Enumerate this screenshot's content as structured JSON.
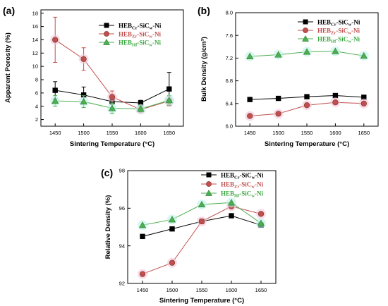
{
  "chart_data": [
    {
      "panel": "(a)",
      "type": "line",
      "xlabel": "Sintering Temperature (°C)",
      "ylabel": "Apparent Porosity (%)",
      "x": [
        1450,
        1500,
        1550,
        1600,
        1650
      ],
      "xlim": [
        1425,
        1675
      ],
      "ylim": [
        1,
        18.5
      ],
      "yticks": [
        2,
        4,
        6,
        8,
        10,
        12,
        14,
        16,
        18
      ],
      "legend_position": "top-right",
      "series": [
        {
          "name": "HEB_Cr-SiC_w-Ni",
          "color": "#000000",
          "marker": "square",
          "values": [
            6.4,
            5.7,
            4.7,
            4.5,
            6.6
          ],
          "errors": [
            1.3,
            1.2,
            0.4,
            0.4,
            2.5
          ]
        },
        {
          "name": "HEB_Zr-SiC_w-Ni",
          "color": "#c0504d",
          "marker": "circle",
          "values": [
            14.0,
            11.1,
            5.4,
            3.5,
            4.8
          ],
          "errors": [
            3.4,
            1.7,
            0.9,
            0.4,
            0.7
          ]
        },
        {
          "name": "HEB_Hf-SiC_w-Ni",
          "color": "#4caf50",
          "marker": "triangle",
          "values": [
            4.8,
            4.7,
            3.7,
            3.6,
            4.9
          ],
          "errors": [
            0.8,
            0.9,
            0.8,
            0.4,
            0.7
          ]
        }
      ]
    },
    {
      "panel": "(b)",
      "type": "line",
      "xlabel": "Sintering Temperature (°C)",
      "ylabel": "Bulk Density (g/cm³)",
      "x": [
        1450,
        1500,
        1550,
        1600,
        1650
      ],
      "xlim": [
        1425,
        1675
      ],
      "ylim": [
        6.0,
        8.0
      ],
      "yticks": [
        "6.0",
        "6.4",
        "6.8",
        "7.2",
        "7.6",
        "8.0"
      ],
      "legend_position": "top-right",
      "series": [
        {
          "name": "HEB_Cr-SiC_w-Ni",
          "color": "#000000",
          "marker": "square",
          "values": [
            6.47,
            6.49,
            6.52,
            6.54,
            6.51
          ]
        },
        {
          "name": "HEB_Zr-SiC_w-Ni",
          "color": "#c0504d",
          "marker": "circle",
          "values": [
            6.18,
            6.22,
            6.37,
            6.42,
            6.4
          ]
        },
        {
          "name": "HEB_Hf-SiC_w-Ni",
          "color": "#4caf50",
          "marker": "triangle",
          "values": [
            7.23,
            7.26,
            7.31,
            7.32,
            7.24
          ]
        }
      ]
    },
    {
      "panel": "(c)",
      "type": "line",
      "xlabel": "Sintering Temperature (°C)",
      "ylabel": "Relative Density (%)",
      "x": [
        1450,
        1500,
        1550,
        1600,
        1650
      ],
      "xlim": [
        1425,
        1675
      ],
      "ylim": [
        92,
        98
      ],
      "yticks": [
        92,
        94,
        96,
        98
      ],
      "legend_position": "top-right",
      "series": [
        {
          "name": "HEB_Cr-SiC_w-Ni",
          "color": "#000000",
          "marker": "square",
          "values": [
            94.5,
            94.9,
            95.3,
            95.6,
            95.1
          ]
        },
        {
          "name": "HEB_Zr-SiC_w-Ni",
          "color": "#c0504d",
          "marker": "circle",
          "values": [
            92.5,
            93.1,
            95.3,
            96.1,
            95.7
          ]
        },
        {
          "name": "HEB_Hf-SiC_w-Ni",
          "color": "#4caf50",
          "marker": "triangle",
          "values": [
            95.1,
            95.4,
            96.2,
            96.3,
            95.2
          ]
        }
      ]
    }
  ],
  "legend_labels": [
    {
      "base": "HEB",
      "sub1": "Cr",
      "mid": "-SiC",
      "sub2": "w",
      "tail": "-Ni"
    },
    {
      "base": "HEB",
      "sub1": "Zr",
      "mid": "-SiC",
      "sub2": "w",
      "tail": "-Ni"
    },
    {
      "base": "HEB",
      "sub1": "Hf",
      "mid": "-SiC",
      "sub2": "w",
      "tail": "-Ni"
    }
  ]
}
